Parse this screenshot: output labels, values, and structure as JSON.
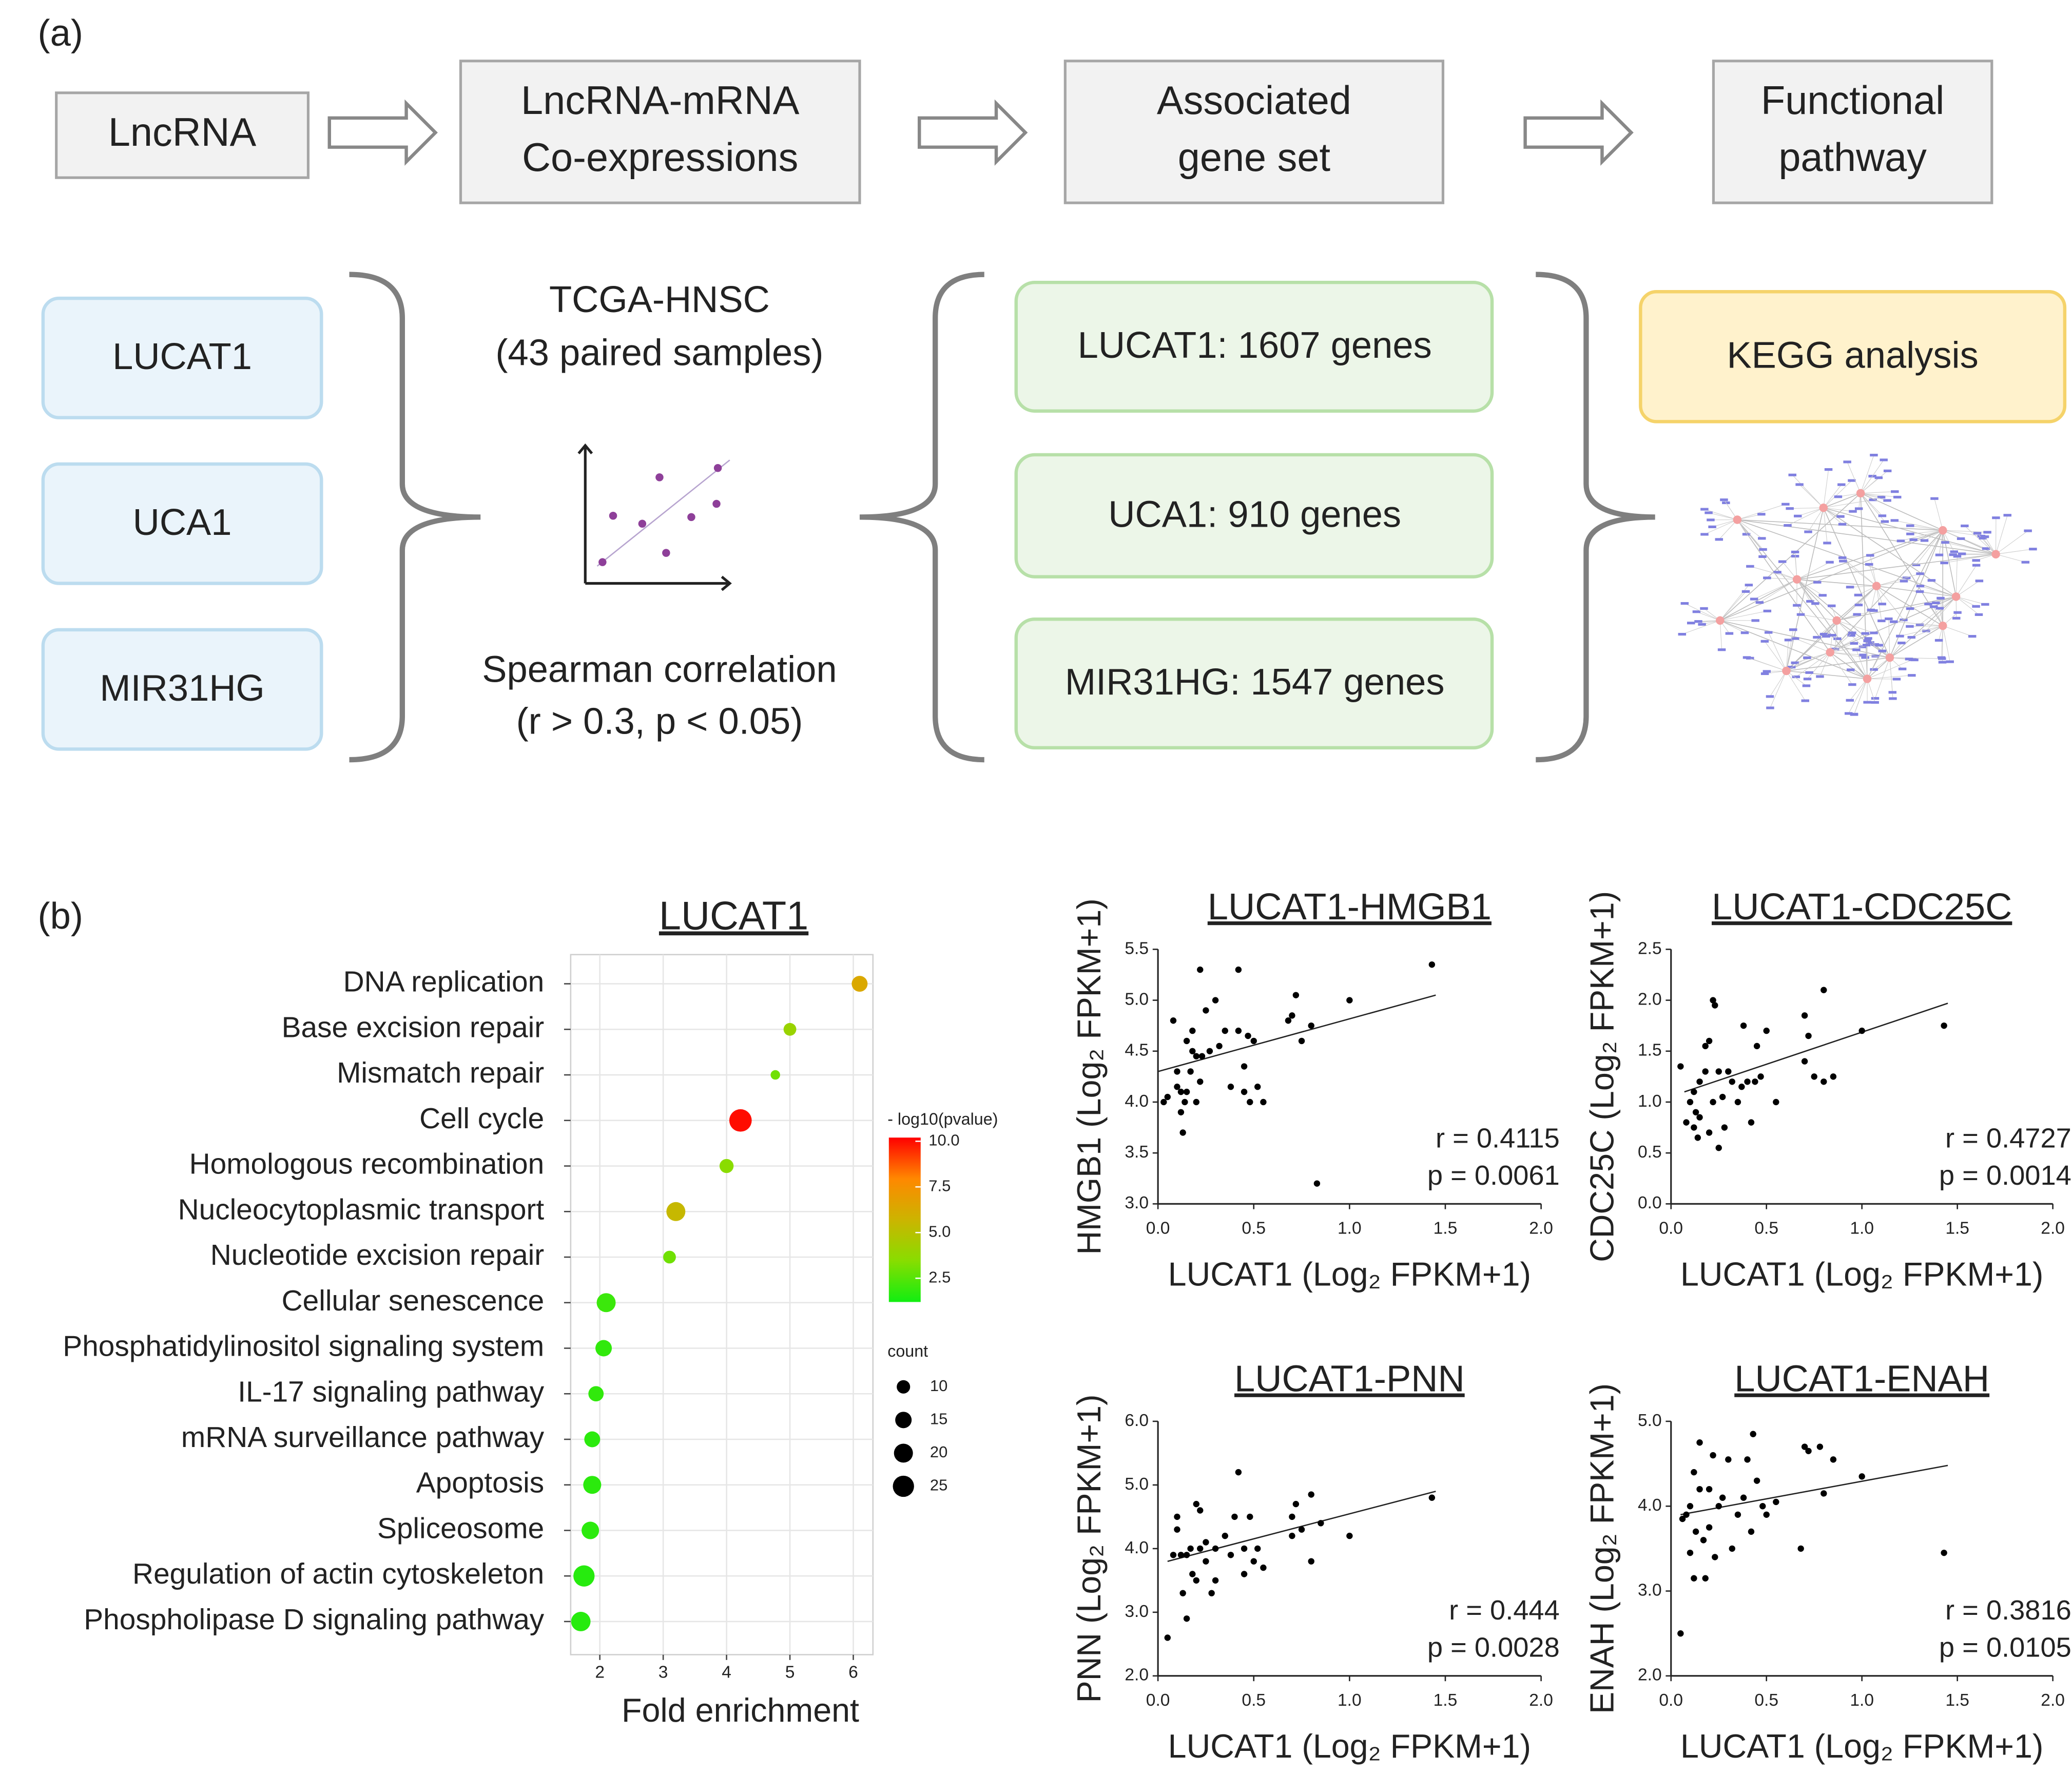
{
  "panel_a": {
    "label": "(a)",
    "steps": [
      [
        "LncRNA"
      ],
      [
        "LncRNA-mRNA",
        "Co-expressions"
      ],
      [
        "Associated",
        "gene set"
      ],
      [
        "Functional",
        "pathway"
      ]
    ],
    "lncrnas": [
      "LUCAT1",
      "UCA1",
      "MIR31HG"
    ],
    "dataset": [
      "TCGA-HNSC",
      "(43 paired samples)"
    ],
    "method": [
      "Spearman correlation",
      "(r > 0.3, p < 0.05)"
    ],
    "gene_sets": [
      "LUCAT1: 1607 genes",
      "UCA1: 910 genes",
      "MIR31HG: 1547 genes"
    ],
    "analysis": "KEGG analysis"
  },
  "panel_b": {
    "label": "(b)"
  },
  "chart_data": [
    {
      "type": "dot",
      "title": "LUCAT1",
      "xlabel": "Fold enrichment",
      "categories": [
        "DNA replication",
        "Base excision repair",
        "Mismatch repair",
        "Cell cycle",
        "Homologous recombination",
        "Nucleocytoplasmic transport",
        "Nucleotide excision repair",
        "Cellular senescence",
        "Phosphatidylinositol signaling system",
        "IL-17 signaling pathway",
        "mRNA surveillance pathway",
        "Apoptosis",
        "Spliceosome",
        "Regulation of actin cytoskeleton",
        "Phospholipase D signaling pathway"
      ],
      "values": [
        6.1,
        5.0,
        4.77,
        4.22,
        4.0,
        3.2,
        3.1,
        2.1,
        2.06,
        1.94,
        1.88,
        1.88,
        1.85,
        1.75,
        1.7
      ],
      "sizes": [
        14,
        9,
        5,
        28,
        11,
        20,
        9,
        20,
        15,
        13,
        14,
        18,
        17,
        25,
        21
      ],
      "color_values": [
        6.3,
        4.0,
        3.0,
        10.0,
        3.5,
        5.5,
        3.0,
        2.0,
        1.8,
        1.8,
        1.7,
        1.7,
        1.7,
        1.6,
        1.6
      ],
      "xlim": [
        1.54,
        6.31
      ],
      "xticks": [
        2,
        3,
        4,
        5,
        6
      ],
      "grid": true,
      "color_legend": {
        "title": "- log10(pvalue)",
        "lim": [
          1.2,
          10.2
        ],
        "ticks": [
          {
            "value": 10,
            "label": "10.0"
          },
          7.5,
          {
            "value": 5,
            "label": "5.0"
          },
          2.5
        ],
        "colors": [
          "#11ee11",
          "#88dd00",
          "#ccb400",
          "#ff8800",
          "#ff0000"
        ]
      },
      "size_legend": {
        "title": "count",
        "values": [
          10,
          15,
          20,
          25
        ]
      }
    },
    {
      "type": "scatter",
      "title": "LUCAT1-HMGB1",
      "xlabel": "LUCAT1 (Log₂ FPKM+1)",
      "ylabel": "HMGB1 (Log₂ FPKM+1)",
      "x": [
        0.03,
        0.05,
        0.08,
        0.1,
        0.1,
        0.12,
        0.12,
        0.13,
        0.14,
        0.15,
        0.15,
        0.17,
        0.18,
        0.18,
        0.2,
        0.2,
        0.22,
        0.22,
        0.23,
        0.25,
        0.27,
        0.3,
        0.32,
        0.35,
        0.38,
        0.42,
        0.42,
        0.45,
        0.45,
        0.47,
        0.48,
        0.5,
        0.52,
        0.55,
        0.68,
        0.7,
        0.72,
        0.75,
        0.8,
        0.83,
        1.0,
        1.43
      ],
      "y": [
        4.0,
        4.05,
        4.8,
        4.15,
        4.3,
        4.1,
        3.9,
        3.7,
        4.0,
        4.6,
        4.1,
        4.3,
        4.5,
        4.7,
        4.45,
        4.0,
        5.3,
        4.2,
        4.45,
        4.9,
        4.5,
        5.0,
        4.55,
        4.7,
        4.15,
        4.7,
        5.3,
        4.1,
        4.35,
        4.65,
        4.0,
        4.6,
        4.15,
        4.0,
        4.8,
        4.85,
        5.05,
        4.6,
        4.75,
        3.2,
        5.0,
        5.35
      ],
      "xlim": [
        0,
        2
      ],
      "ylim": [
        3,
        5.5
      ],
      "xticks": [
        {
          "value": 0,
          "label": "0.0"
        },
        0.5,
        {
          "value": 1,
          "label": "1.0"
        },
        1.5,
        {
          "value": 2,
          "label": "2.0"
        }
      ],
      "yticks": [
        {
          "value": 3,
          "label": "3.0"
        },
        3.5,
        {
          "value": 4,
          "label": "4.0"
        },
        4.5,
        {
          "value": 5,
          "label": "5.0"
        },
        5.5
      ],
      "trendline": {
        "x": [
          0,
          1.45
        ],
        "y": [
          4.3,
          5.05
        ]
      },
      "annotations": [
        "r = 0.4115",
        "p = 0.0061"
      ]
    },
    {
      "type": "scatter",
      "title": "LUCAT1-CDC25C",
      "xlabel": "LUCAT1 (Log₂ FPKM+1)",
      "ylabel": "CDC25C (Log₂ FPKM+1)",
      "x": [
        0.05,
        0.08,
        0.1,
        0.12,
        0.12,
        0.13,
        0.14,
        0.15,
        0.15,
        0.18,
        0.18,
        0.2,
        0.2,
        0.22,
        0.23,
        0.22,
        0.25,
        0.25,
        0.27,
        0.28,
        0.3,
        0.32,
        0.35,
        0.37,
        0.38,
        0.4,
        0.42,
        0.44,
        0.45,
        0.47,
        0.5,
        0.55,
        0.7,
        0.7,
        0.72,
        0.75,
        0.8,
        0.8,
        0.85,
        1.0,
        1.43
      ],
      "y": [
        1.35,
        0.8,
        1.0,
        0.75,
        1.1,
        0.9,
        0.65,
        1.2,
        0.85,
        1.3,
        1.55,
        1.6,
        0.7,
        2.0,
        1.95,
        1.0,
        0.55,
        1.3,
        1.05,
        0.75,
        1.3,
        1.2,
        1.0,
        1.15,
        1.75,
        1.2,
        0.8,
        1.2,
        1.55,
        1.25,
        1.7,
        1.0,
        1.4,
        1.85,
        1.65,
        1.25,
        2.1,
        1.2,
        1.25,
        1.7,
        1.75
      ],
      "xlim": [
        0,
        2
      ],
      "ylim": [
        0,
        2.5
      ],
      "xticks": [
        {
          "value": 0,
          "label": "0.0"
        },
        0.5,
        {
          "value": 1,
          "label": "1.0"
        },
        1.5,
        {
          "value": 2,
          "label": "2.0"
        }
      ],
      "yticks": [
        {
          "value": 0,
          "label": "0.0"
        },
        0.5,
        {
          "value": 1,
          "label": "1.0"
        },
        1.5,
        {
          "value": 2,
          "label": "2.0"
        },
        2.5
      ],
      "trendline": {
        "x": [
          0.07,
          1.45
        ],
        "y": [
          1.1,
          1.97
        ]
      },
      "annotations": [
        "r = 0.4727",
        "p = 0.0014"
      ]
    },
    {
      "type": "scatter",
      "title": "LUCAT1-PNN",
      "xlabel": "LUCAT1 (Log₂ FPKM+1)",
      "ylabel": "PNN (Log₂ FPKM+1)",
      "x": [
        0.05,
        0.08,
        0.1,
        0.1,
        0.12,
        0.13,
        0.15,
        0.15,
        0.17,
        0.18,
        0.2,
        0.2,
        0.22,
        0.22,
        0.25,
        0.25,
        0.28,
        0.3,
        0.3,
        0.35,
        0.38,
        0.4,
        0.42,
        0.45,
        0.45,
        0.48,
        0.5,
        0.52,
        0.55,
        0.7,
        0.7,
        0.72,
        0.75,
        0.8,
        0.8,
        0.85,
        1.0,
        1.43
      ],
      "y": [
        2.6,
        3.9,
        4.3,
        4.5,
        3.9,
        3.3,
        3.9,
        2.9,
        4.0,
        3.6,
        4.7,
        3.5,
        4.0,
        4.6,
        3.8,
        4.1,
        3.3,
        4.0,
        3.5,
        4.2,
        3.9,
        4.5,
        5.2,
        3.6,
        4.0,
        4.5,
        3.8,
        4.0,
        3.7,
        4.2,
        4.5,
        4.7,
        4.3,
        3.8,
        4.85,
        4.4,
        4.2,
        4.8
      ],
      "xlim": [
        0,
        2
      ],
      "ylim": [
        2,
        6
      ],
      "xticks": [
        {
          "value": 0,
          "label": "0.0"
        },
        0.5,
        {
          "value": 1,
          "label": "1.0"
        },
        1.5,
        {
          "value": 2,
          "label": "2.0"
        }
      ],
      "yticks": [
        {
          "value": 2,
          "label": "2.0"
        },
        {
          "value": 3,
          "label": "3.0"
        },
        {
          "value": 4,
          "label": "4.0"
        },
        {
          "value": 5,
          "label": "5.0"
        },
        {
          "value": 6,
          "label": "6.0"
        }
      ],
      "trendline": {
        "x": [
          0.05,
          1.45
        ],
        "y": [
          3.8,
          4.9
        ]
      },
      "annotations": [
        "r = 0.444",
        "p = 0.0028"
      ]
    },
    {
      "type": "scatter",
      "title": "LUCAT1-ENAH",
      "xlabel": "LUCAT1 (Log₂ FPKM+1)",
      "ylabel": "ENAH (Log₂ FPKM+1)",
      "x": [
        0.05,
        0.06,
        0.08,
        0.1,
        0.1,
        0.12,
        0.12,
        0.13,
        0.15,
        0.15,
        0.17,
        0.18,
        0.2,
        0.2,
        0.22,
        0.23,
        0.25,
        0.27,
        0.3,
        0.32,
        0.35,
        0.38,
        0.4,
        0.42,
        0.43,
        0.45,
        0.48,
        0.5,
        0.55,
        0.68,
        0.7,
        0.72,
        0.78,
        0.8,
        0.85,
        1.0,
        1.43
      ],
      "y": [
        2.5,
        3.85,
        3.9,
        4.0,
        3.45,
        3.15,
        4.4,
        3.7,
        4.75,
        4.2,
        3.6,
        3.15,
        4.2,
        3.75,
        4.6,
        3.4,
        4.0,
        4.1,
        4.55,
        3.5,
        3.9,
        4.1,
        4.55,
        3.7,
        4.85,
        4.3,
        4.0,
        3.9,
        4.05,
        3.5,
        4.7,
        4.65,
        4.7,
        4.15,
        4.55,
        4.35,
        3.45
      ],
      "xlim": [
        0,
        2
      ],
      "ylim": [
        2,
        5
      ],
      "xticks": [
        {
          "value": 0,
          "label": "0.0"
        },
        0.5,
        {
          "value": 1,
          "label": "1.0"
        },
        1.5,
        {
          "value": 2,
          "label": "2.0"
        }
      ],
      "yticks": [
        {
          "value": 2,
          "label": "2.0"
        },
        {
          "value": 3,
          "label": "3.0"
        },
        {
          "value": 4,
          "label": "4.0"
        },
        {
          "value": 5,
          "label": "5.0"
        }
      ],
      "trendline": {
        "x": [
          0.05,
          1.45
        ],
        "y": [
          3.9,
          4.48
        ]
      },
      "annotations": [
        "r = 0.3816",
        "p = 0.0105"
      ]
    }
  ]
}
